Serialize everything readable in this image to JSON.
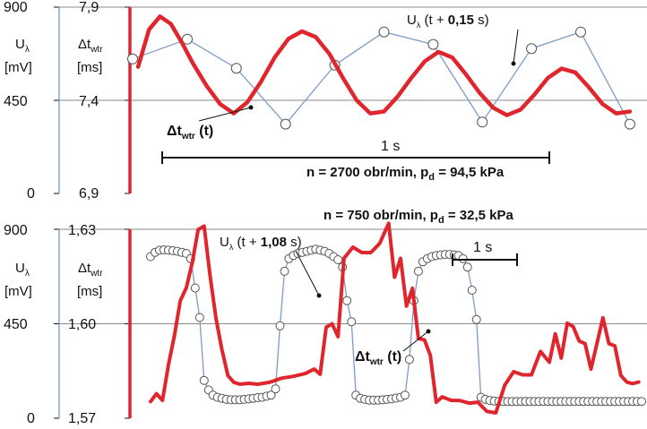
{
  "colors": {
    "delay": "#e0262d",
    "lambda": "#7f9bc6",
    "grid": "#8a8a8a",
    "axis_left": "#6f8fbf",
    "text": "#111111"
  },
  "chart_data": [
    {
      "type": "line",
      "name": "top",
      "condition": "n = 2700 obr/min, p_d = 94,5 kPa",
      "condition_parts": {
        "n": "n = 2700 obr/min, p",
        "sub": "d",
        "rest": " = 94,5 kPa"
      },
      "left_axis": {
        "label": "Uλ",
        "label_main": "U",
        "label_sub": "λ",
        "unit": "[mV]",
        "ticks": [
          "0",
          "450",
          "900"
        ],
        "range": [
          0,
          900
        ]
      },
      "right_axis": {
        "label": "Δtwtr",
        "label_main": "Δt",
        "label_sub": "wtr",
        "unit": "[ms]",
        "ticks": [
          "6,9",
          "7,4",
          "7,9"
        ],
        "range": [
          6.9,
          7.9
        ]
      },
      "xlim": [
        0,
        1.85
      ],
      "scale_bar": {
        "label": "1 s",
        "x0": 0.02,
        "x1": 1.0
      },
      "series": [
        {
          "name": "Δtwtr (t)",
          "label_main": "Δt",
          "label_sub": "wtr",
          "label_tail": " (t)",
          "style": "thick-red-smooth",
          "x": [
            0.02,
            0.06,
            0.1,
            0.14,
            0.18,
            0.22,
            0.27,
            0.32,
            0.37,
            0.42,
            0.47,
            0.52,
            0.57,
            0.62,
            0.67,
            0.72,
            0.77,
            0.82,
            0.87,
            0.92,
            0.97,
            1.02,
            1.07,
            1.12,
            1.17,
            1.22,
            1.27,
            1.32,
            1.37,
            1.42,
            1.47,
            1.52,
            1.57,
            1.62,
            1.67,
            1.72,
            1.77,
            1.82
          ],
          "y": [
            7.58,
            7.78,
            7.85,
            7.81,
            7.71,
            7.6,
            7.48,
            7.38,
            7.33,
            7.39,
            7.5,
            7.63,
            7.73,
            7.77,
            7.74,
            7.65,
            7.52,
            7.4,
            7.33,
            7.34,
            7.42,
            7.52,
            7.61,
            7.66,
            7.63,
            7.54,
            7.44,
            7.36,
            7.32,
            7.35,
            7.43,
            7.52,
            7.57,
            7.55,
            7.47,
            7.38,
            7.33,
            7.34
          ]
        },
        {
          "name": "Uλ (t + 0,15 s)",
          "label_main": "U",
          "label_sub": "λ",
          "label_tail": " (t + ",
          "label_bold": "0,15",
          "label_end": " s)",
          "style": "thin-blue-markers",
          "x": [
            0.0,
            0.2,
            0.38,
            0.56,
            0.74,
            0.92,
            1.1,
            1.28,
            1.46,
            1.64,
            1.82
          ],
          "y": [
            650,
            745,
            605,
            335,
            620,
            780,
            720,
            345,
            700,
            780,
            335
          ]
        }
      ]
    },
    {
      "type": "line",
      "name": "bottom",
      "condition": "n = 750 obr/min, p_d = 32,5 kPa",
      "condition_parts": {
        "n": "n = 750 obr/min, p",
        "sub": "d",
        "rest": " = 32,5 kPa"
      },
      "left_axis": {
        "label": "Uλ",
        "label_main": "U",
        "label_sub": "λ",
        "unit": "[mV]",
        "ticks": [
          "0",
          "450",
          "900"
        ],
        "range": [
          0,
          900
        ]
      },
      "right_axis": {
        "label": "Δtwtr",
        "label_main": "Δt",
        "label_sub": "wtr",
        "unit": "[ms]",
        "ticks": [
          "1,57",
          "1,60",
          "1,63"
        ],
        "range": [
          1.57,
          1.63
        ]
      },
      "xlim": [
        0,
        3.3
      ],
      "scale_bar": {
        "label": "1 s",
        "x0": 1.98,
        "x1": 2.58
      },
      "series": [
        {
          "name": "Δtwtr (t)",
          "label_main": "Δt",
          "label_sub": "wtr",
          "label_tail": " (t)",
          "style": "thick-red-jagged",
          "x": [
            0.0,
            0.04,
            0.08,
            0.12,
            0.16,
            0.2,
            0.24,
            0.28,
            0.32,
            0.36,
            0.4,
            0.44,
            0.48,
            0.52,
            0.56,
            0.6,
            0.66,
            0.72,
            0.8,
            0.88,
            0.96,
            1.04,
            1.1,
            1.14,
            1.18,
            1.22,
            1.26,
            1.3,
            1.36,
            1.42,
            1.48,
            1.54,
            1.6,
            1.64,
            1.68,
            1.72,
            1.76,
            1.8,
            1.84,
            1.88,
            1.92,
            1.96,
            2.02,
            2.08,
            2.14,
            2.2,
            2.26,
            2.32,
            2.38,
            2.44,
            2.5,
            2.56,
            2.62,
            2.68,
            2.72,
            2.76,
            2.8,
            2.84,
            2.88,
            2.92,
            2.96,
            3.0,
            3.04,
            3.08,
            3.12,
            3.16,
            3.2,
            3.24,
            3.28
          ],
          "y": [
            1.5753,
            1.5778,
            1.5757,
            1.5868,
            1.5962,
            1.6073,
            1.6114,
            1.6193,
            1.6299,
            1.631,
            1.6153,
            1.6016,
            1.5917,
            1.5835,
            1.5814,
            1.5808,
            1.5811,
            1.5808,
            1.5814,
            1.5827,
            1.5833,
            1.5842,
            1.5856,
            1.584,
            1.5989,
            1.6,
            1.5959,
            1.6208,
            1.6243,
            1.6226,
            1.6226,
            1.6255,
            1.6319,
            1.6148,
            1.6208,
            1.6056,
            1.6113,
            1.5953,
            1.5949,
            1.59,
            1.5751,
            1.5768,
            1.5757,
            1.5756,
            1.5748,
            1.5751,
            1.5722,
            1.5717,
            1.5805,
            1.5848,
            1.5838,
            1.5838,
            1.5912,
            1.5878,
            1.5968,
            1.5891,
            1.6002,
            1.5991,
            1.5945,
            1.5937,
            1.5856,
            1.5938,
            1.6019,
            1.5937,
            1.593,
            1.5836,
            1.5815,
            1.581,
            1.5815
          ]
        },
        {
          "name": "Uλ (t + 1,08 s)",
          "label_main": "U",
          "label_sub": "λ",
          "label_tail": " (t + ",
          "label_bold": "1,08",
          "label_end": " s)",
          "style": "thin-blue-circles",
          "x": [
            0.0,
            0.03,
            0.06,
            0.09,
            0.12,
            0.15,
            0.18,
            0.21,
            0.24,
            0.27,
            0.3,
            0.33,
            0.36,
            0.39,
            0.42,
            0.45,
            0.48,
            0.51,
            0.54,
            0.57,
            0.6,
            0.63,
            0.66,
            0.69,
            0.72,
            0.75,
            0.78,
            0.81,
            0.84,
            0.87,
            0.9,
            0.93,
            0.96,
            0.99,
            1.02,
            1.05,
            1.08,
            1.11,
            1.14,
            1.17,
            1.2,
            1.23,
            1.26,
            1.29,
            1.32,
            1.35,
            1.38,
            1.41,
            1.44,
            1.47,
            1.5,
            1.53,
            1.56,
            1.59,
            1.62,
            1.65,
            1.68,
            1.71,
            1.74,
            1.77,
            1.8,
            1.83,
            1.86,
            1.89,
            1.92,
            1.95,
            1.98,
            2.01,
            2.04,
            2.07,
            2.1,
            2.13,
            2.16,
            2.19,
            2.22,
            2.25,
            2.28,
            2.31,
            2.34,
            2.37,
            2.4,
            2.43,
            2.46,
            2.49,
            2.52,
            2.55,
            2.58,
            2.61,
            2.64,
            2.67,
            2.7,
            2.73,
            2.76,
            2.79,
            2.82,
            2.85,
            2.88,
            2.91,
            2.94,
            2.97,
            3.0,
            3.03,
            3.06,
            3.09,
            3.12,
            3.15,
            3.18,
            3.21,
            3.24,
            3.27,
            3.3
          ],
          "y": [
            770,
            790,
            800,
            802,
            800,
            798,
            795,
            790,
            785,
            760,
            620,
            480,
            180,
            135,
            110,
            100,
            95,
            90,
            88,
            88,
            88,
            90,
            92,
            95,
            98,
            100,
            105,
            110,
            140,
            440,
            700,
            760,
            775,
            785,
            790,
            795,
            800,
            805,
            800,
            795,
            785,
            770,
            755,
            720,
            560,
            460,
            110,
            95,
            90,
            86,
            86,
            86,
            88,
            90,
            92,
            96,
            100,
            110,
            280,
            560,
            700,
            745,
            760,
            770,
            775,
            778,
            780,
            780,
            778,
            775,
            760,
            720,
            610,
            470,
            100,
            90,
            85,
            82,
            80,
            80,
            80,
            80,
            80,
            80,
            80,
            80,
            80,
            80,
            80,
            80,
            80,
            80,
            80,
            80,
            80,
            80,
            80,
            80,
            80,
            80,
            80,
            80,
            80,
            80,
            80,
            80,
            80,
            80,
            80,
            80,
            80
          ]
        }
      ]
    }
  ]
}
